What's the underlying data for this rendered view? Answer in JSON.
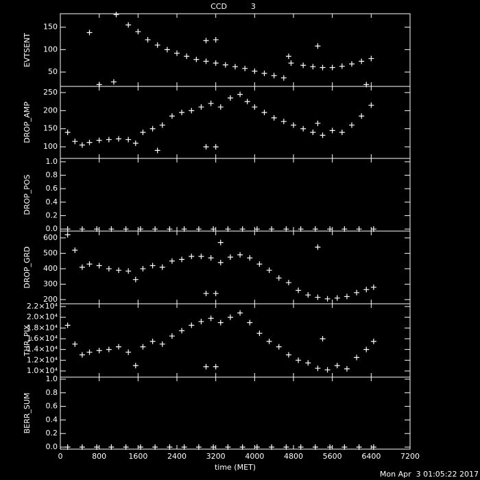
{
  "title": "CCD          3",
  "timestamp": "Mon Apr  3 01:05:22 2017",
  "chart_data": [
    {
      "type": "scatter",
      "ylabel": "EVTSENT",
      "ylim": [
        18,
        180
      ],
      "yticks": [
        50,
        100,
        150
      ],
      "x": [
        1150,
        1400,
        1600,
        1800,
        2000,
        2200,
        2400,
        2600,
        2800,
        3000,
        3200,
        3400,
        3600,
        3800,
        4000,
        4200,
        4400,
        4600,
        4750,
        5000,
        5200,
        5400,
        5600,
        5800,
        6000,
        6200,
        6400,
        600,
        800,
        1100,
        3000,
        3200,
        4700,
        5300,
        6300
      ],
      "values": [
        178,
        155,
        140,
        122,
        110,
        100,
        92,
        85,
        78,
        74,
        70,
        66,
        62,
        58,
        52,
        47,
        42,
        37,
        70,
        65,
        62,
        60,
        60,
        63,
        68,
        74,
        80,
        138,
        22,
        28,
        120,
        122,
        85,
        108,
        22
      ]
    },
    {
      "type": "scatter",
      "ylabel": "DROP_AMP",
      "ylim": [
        68,
        267
      ],
      "yticks": [
        100,
        150,
        200,
        250
      ],
      "x": [
        150,
        300,
        450,
        600,
        800,
        1000,
        1200,
        1400,
        1550,
        1700,
        1900,
        2100,
        2300,
        2500,
        2700,
        2900,
        3100,
        3300,
        3500,
        3700,
        3850,
        4000,
        4200,
        4400,
        4600,
        4800,
        5000,
        5200,
        5400,
        5600,
        5800,
        6000,
        6200,
        6400,
        3000,
        3200,
        5300,
        2000
      ],
      "values": [
        140,
        115,
        105,
        112,
        118,
        120,
        122,
        120,
        110,
        140,
        150,
        160,
        185,
        195,
        200,
        210,
        220,
        210,
        235,
        245,
        225,
        210,
        195,
        180,
        170,
        160,
        150,
        140,
        132,
        145,
        140,
        160,
        185,
        215,
        100,
        100,
        165,
        90
      ]
    },
    {
      "type": "scatter",
      "ylabel": "DROP_POS",
      "ylim": [
        -0.03,
        1.05
      ],
      "yticks": [
        {
          "value": 0,
          "label": "0.0"
        },
        0.2,
        0.4,
        0.6,
        0.8,
        {
          "value": 1,
          "label": "1.0"
        }
      ],
      "x": [
        150,
        450,
        750,
        1050,
        1350,
        1650,
        1950,
        2250,
        2550,
        2850,
        3150,
        3450,
        3750,
        4050,
        4350,
        4650,
        4950,
        5250,
        5550,
        5850,
        6150,
        6450
      ],
      "values": [
        0,
        0,
        0,
        0,
        0,
        0,
        0,
        0,
        0,
        0,
        0,
        0,
        0,
        0,
        0,
        0,
        0,
        0,
        0,
        0,
        0,
        0
      ]
    },
    {
      "type": "scatter",
      "ylabel": "DROP_GRD",
      "ylim": [
        173,
        644
      ],
      "yticks": [
        200,
        300,
        400,
        500,
        600
      ],
      "x": [
        150,
        300,
        450,
        600,
        800,
        1000,
        1200,
        1400,
        1550,
        1700,
        1900,
        2100,
        2300,
        2500,
        2700,
        2900,
        3100,
        3300,
        3500,
        3700,
        3900,
        4100,
        4300,
        4500,
        4700,
        4900,
        5100,
        5300,
        5500,
        5700,
        5900,
        6100,
        6300,
        6450,
        3000,
        3200,
        5300,
        3300
      ],
      "values": [
        620,
        520,
        410,
        430,
        420,
        400,
        390,
        385,
        330,
        400,
        420,
        410,
        450,
        460,
        480,
        480,
        470,
        440,
        475,
        490,
        470,
        430,
        390,
        340,
        310,
        260,
        230,
        215,
        205,
        210,
        220,
        245,
        265,
        280,
        240,
        240,
        540,
        570
      ]
    },
    {
      "type": "scatter",
      "ylabel": "THR_PIX",
      "ylim": [
        8850,
        22510
      ],
      "yticks": [
        {
          "value": 10000,
          "label": "1.0×10⁴"
        },
        {
          "value": 12000,
          "label": "1.2×10⁴"
        },
        {
          "value": 14000,
          "label": "1.4×10⁴"
        },
        {
          "value": 16000,
          "label": "1.6×10⁴"
        },
        {
          "value": 18000,
          "label": "1.8×10⁴"
        },
        {
          "value": 20000,
          "label": "2.0×10⁴"
        },
        {
          "value": 22000,
          "label": "2.2×10⁴"
        }
      ],
      "x": [
        150,
        300,
        450,
        600,
        800,
        1000,
        1200,
        1400,
        1550,
        1700,
        1900,
        2100,
        2300,
        2500,
        2700,
        2900,
        3100,
        3300,
        3500,
        3700,
        3900,
        4100,
        4300,
        4500,
        4700,
        4900,
        5100,
        5300,
        5500,
        5700,
        5900,
        6100,
        6300,
        6450,
        3000,
        3200,
        5400
      ],
      "values": [
        18500,
        15000,
        13000,
        13500,
        13800,
        14000,
        14500,
        13500,
        11000,
        14500,
        15500,
        15000,
        16500,
        17500,
        18500,
        19200,
        19800,
        19000,
        20000,
        20800,
        19000,
        17000,
        15500,
        14500,
        13000,
        12000,
        11500,
        10500,
        10200,
        11000,
        10400,
        12500,
        14000,
        15500,
        10800,
        10800,
        16000
      ]
    },
    {
      "type": "scatter",
      "ylabel": "BERR_SUM",
      "xlabel": "time (MET)",
      "ylim": [
        -0.03,
        1.03
      ],
      "yticks": [
        {
          "value": 0,
          "label": "0.0"
        },
        0.2,
        0.4,
        0.6,
        0.8,
        {
          "value": 1,
          "label": "1.0"
        }
      ],
      "xlim": [
        0,
        7200
      ],
      "xticks": [
        0,
        800,
        1600,
        2400,
        3200,
        4000,
        4800,
        5600,
        6400,
        7200
      ],
      "x": [
        150,
        450,
        750,
        1050,
        1350,
        1650,
        1950,
        2250,
        2550,
        2850,
        3150,
        3450,
        3750,
        4050,
        4350,
        4650,
        4950,
        5250,
        5550,
        5850,
        6150,
        6450
      ],
      "values": [
        0,
        0,
        0,
        0,
        0,
        0,
        0,
        0,
        0,
        0,
        0,
        0,
        0,
        0,
        0,
        0,
        0,
        0,
        0,
        0,
        0,
        0
      ]
    }
  ]
}
